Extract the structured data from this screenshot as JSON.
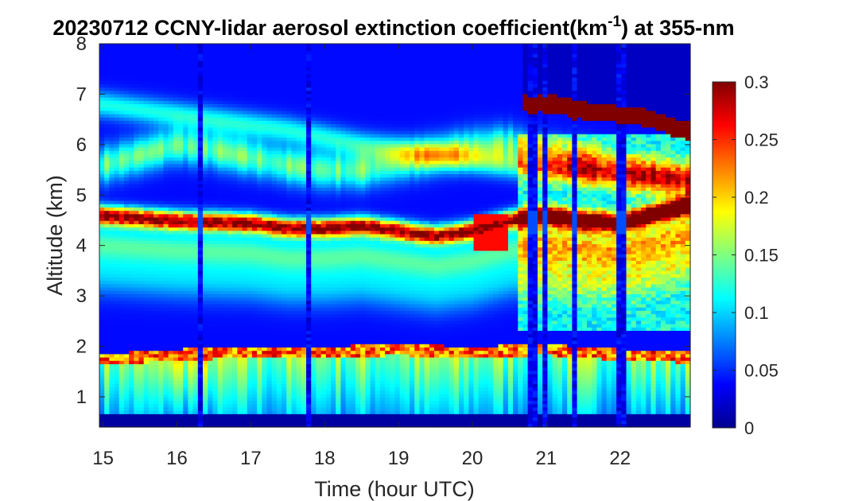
{
  "chart_data": {
    "type": "heatmap",
    "title": {
      "prefix": "20230712 CCNY-lidar aerosol extinction coefficient(km",
      "superscript": "-1",
      "suffix": ") at 355-nm"
    },
    "xlabel": "Time (hour UTC)",
    "ylabel": "Altitude (km)",
    "xlim": [
      14.95,
      22.95
    ],
    "ylim": [
      0.4,
      8
    ],
    "x_ticks": [
      15,
      16,
      17,
      18,
      19,
      20,
      21,
      22
    ],
    "x_tick_labels": [
      "15",
      "16",
      "17",
      "18",
      "19",
      "20",
      "21",
      "22"
    ],
    "y_ticks": [
      1,
      2,
      3,
      4,
      5,
      6,
      7,
      8
    ],
    "y_tick_labels": [
      "1",
      "2",
      "3",
      "4",
      "5",
      "6",
      "7",
      "8"
    ],
    "colorbar": {
      "colormap": "jet",
      "range": [
        0,
        0.3
      ],
      "ticks": [
        0,
        0.05,
        0.1,
        0.15,
        0.2,
        0.25,
        0.3
      ],
      "tick_labels": [
        "0",
        "0.05",
        "0.1",
        "0.15",
        "0.2",
        "0.25",
        "0.3"
      ],
      "location": "right"
    },
    "features": {
      "aerosol_layer": [
        [
          15.0,
          4.6
        ],
        [
          16.0,
          4.5
        ],
        [
          17.0,
          4.45
        ],
        [
          17.5,
          4.35
        ],
        [
          18.0,
          4.35
        ],
        [
          18.5,
          4.4
        ],
        [
          19.0,
          4.3
        ],
        [
          19.5,
          4.2
        ],
        [
          20.0,
          4.3
        ],
        [
          20.5,
          4.5
        ],
        [
          21.0,
          4.6
        ],
        [
          21.5,
          4.5
        ],
        [
          22.0,
          4.45
        ],
        [
          22.9,
          4.8
        ]
      ],
      "upper_layer": [
        [
          15.0,
          5.6
        ],
        [
          15.5,
          5.8
        ],
        [
          16.0,
          6.0
        ],
        [
          16.5,
          5.9
        ],
        [
          17.0,
          5.75
        ],
        [
          17.5,
          5.6
        ],
        [
          18.0,
          5.5
        ],
        [
          18.5,
          5.5
        ],
        [
          19.0,
          5.65
        ],
        [
          19.5,
          5.8
        ],
        [
          20.0,
          5.95
        ],
        [
          20.5,
          6.0
        ],
        [
          21.0,
          5.8
        ],
        [
          22.0,
          5.5
        ],
        [
          22.9,
          5.3
        ]
      ],
      "top_layer": [
        [
          15.0,
          6.8
        ],
        [
          15.5,
          6.7
        ],
        [
          16.0,
          6.6
        ],
        [
          16.5,
          6.5
        ],
        [
          17.0,
          6.4
        ],
        [
          17.5,
          6.3
        ],
        [
          18.0,
          6.15
        ],
        [
          18.5,
          6.0
        ],
        [
          19.0,
          5.9
        ],
        [
          20.0,
          5.7
        ],
        [
          21.0,
          5.5
        ],
        [
          22.0,
          5.4
        ],
        [
          22.9,
          5.3
        ]
      ],
      "cloud_top": [
        [
          20.75,
          6.75
        ],
        [
          21.0,
          6.75
        ],
        [
          21.25,
          6.7
        ],
        [
          21.5,
          6.6
        ],
        [
          21.75,
          6.55
        ],
        [
          22.0,
          6.55
        ],
        [
          22.25,
          6.5
        ],
        [
          22.5,
          6.4
        ],
        [
          22.75,
          6.25
        ],
        [
          22.9,
          6.2
        ]
      ],
      "pbl_top": [
        [
          15.0,
          1.85
        ],
        [
          16.0,
          1.95
        ],
        [
          17.0,
          2.0
        ],
        [
          18.0,
          2.0
        ],
        [
          19.0,
          2.05
        ],
        [
          20.0,
          2.0
        ],
        [
          21.0,
          2.05
        ],
        [
          22.0,
          1.95
        ],
        [
          22.9,
          1.9
        ]
      ],
      "gaps": [
        [
          16.27,
          16.33
        ],
        [
          17.74,
          17.84
        ],
        [
          20.78,
          20.85
        ],
        [
          20.93,
          21.02
        ],
        [
          21.33,
          21.42
        ],
        [
          21.98,
          22.06
        ]
      ]
    }
  }
}
